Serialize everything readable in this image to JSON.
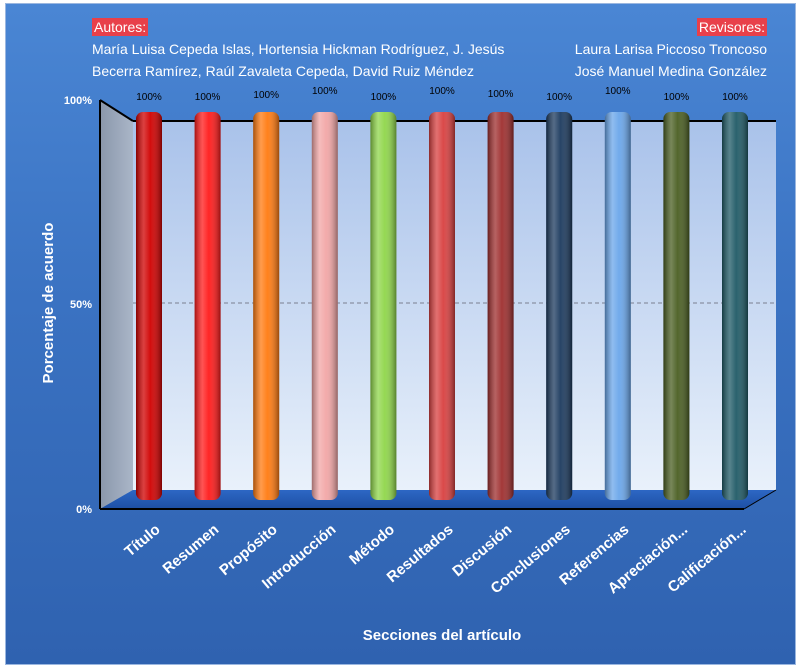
{
  "header": {
    "authors_tag": "Autores:",
    "authors_line1": "María Luisa Cepeda Islas, Hortensia Hickman Rodríguez, J. Jesús",
    "authors_line2": "Becerra Ramírez, Raúl Zavaleta Cepeda, David Ruiz Méndez",
    "reviewers_tag": "Revisores:",
    "reviewers_line1": "Laura Larisa Piccoso Troncoso",
    "reviewers_line2": "José Manuel Medina González"
  },
  "chart_data": {
    "type": "bar",
    "title": "",
    "xlabel": "Secciones del artículo",
    "ylabel": "Porcentaje de acuerdo",
    "ylim": [
      0,
      100
    ],
    "yticks": [
      "0%",
      "50%",
      "100%"
    ],
    "grid": true,
    "categories": [
      "Título",
      "Resumen",
      "Propósito",
      "Introducción",
      "Método",
      "Resultados",
      "Discusión",
      "Conclusiones",
      "Referencias",
      "Apreciación...",
      "Calificación..."
    ],
    "values": [
      100,
      100,
      100,
      100,
      100,
      100,
      100,
      100,
      100,
      100,
      100
    ],
    "value_labels": [
      "100%",
      "100%",
      "100%",
      "100%",
      "100%",
      "100%",
      "100%",
      "100%",
      "100%",
      "100%",
      "100%"
    ],
    "colors": [
      "#d00000",
      "#ff1a1a",
      "#ff7a10",
      "#f2a6a6",
      "#8fd64a",
      "#d84040",
      "#9e2e2e",
      "#1c3a5e",
      "#6aa6ea",
      "#4a5e22",
      "#1f5a66"
    ]
  }
}
